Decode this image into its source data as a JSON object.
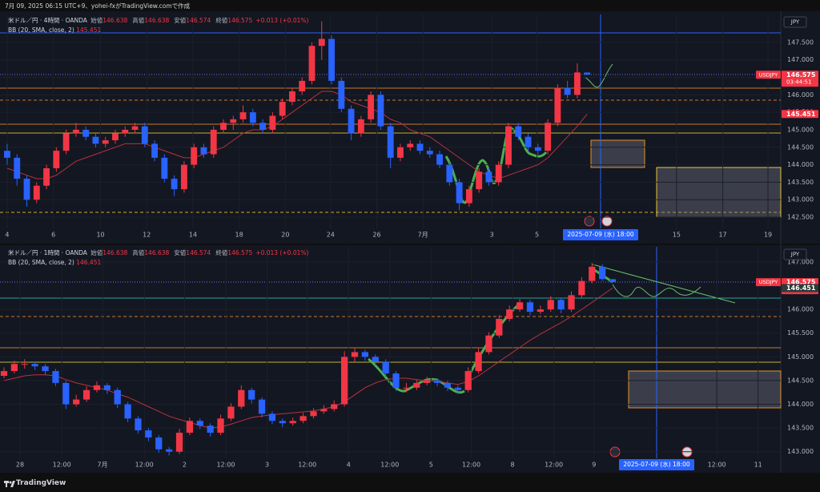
{
  "header": {
    "text": "7月 09, 2025 06:15 UTC+9、yohei-fxがTradingView.comで作成"
  },
  "footer": {
    "brand": "TradingView"
  },
  "chart_data": [
    {
      "type": "candlestick",
      "name": "米ドル／円 · 4時間 · OANDA",
      "fields": [
        {
          "label": "始値",
          "value": "146.638"
        },
        {
          "label": "高値",
          "value": "146.638"
        },
        {
          "label": "安値",
          "value": "146.574"
        },
        {
          "label": "終値",
          "value": "146.575"
        }
      ],
      "change": "+0.013 (+0.01%)",
      "bb_name": "BB (20, SMA, close, 2)",
      "bb_value": "145.451",
      "currency": "JPY",
      "tags": {
        "symbol": "USDJPY",
        "price": "146.575",
        "countdown": "03:44:51",
        "bb": "145.451"
      },
      "crosshair_label": "2025-07-09 (水)  18:00",
      "up_color": "#f23645",
      "down_color": "#2962ff",
      "bb_color": "#b8323c",
      "bb_tag_color": "#f23645",
      "ylim": [
        142.18,
        148.3
      ],
      "yticks": [
        {
          "value": 142.5,
          "label": "142.500"
        },
        {
          "value": 143,
          "label": "143.000"
        },
        {
          "value": 143.5,
          "label": "143.500"
        },
        {
          "value": 144,
          "label": "144.000"
        },
        {
          "value": 144.5,
          "label": "144.500"
        },
        {
          "value": 145,
          "label": "145.000"
        },
        {
          "value": 145.5,
          "label": "145.500"
        },
        {
          "value": 146,
          "label": "146.000"
        },
        {
          "value": 146.5,
          "label": "146.500"
        },
        {
          "value": 147,
          "label": "147.000"
        },
        {
          "value": 147.5,
          "label": "147.500"
        }
      ],
      "xlim": [
        -0.73,
        78.7
      ],
      "xticks": [
        {
          "value": 0,
          "label": "4"
        },
        {
          "value": 4.7,
          "label": "6"
        },
        {
          "value": 9.5,
          "label": "10"
        },
        {
          "value": 14.2,
          "label": "12"
        },
        {
          "value": 18.9,
          "label": "14"
        },
        {
          "value": 23.6,
          "label": "18"
        },
        {
          "value": 28.3,
          "label": "20"
        },
        {
          "value": 32.9,
          "label": "24"
        },
        {
          "value": 37.6,
          "label": "26"
        },
        {
          "value": 42.3,
          "label": "7月"
        },
        {
          "value": 49.3,
          "label": "3"
        },
        {
          "value": 53.9,
          "label": "5"
        },
        {
          "value": 68.1,
          "label": "15"
        },
        {
          "value": 72.8,
          "label": "17"
        },
        {
          "value": 77.4,
          "label": "19"
        }
      ],
      "candles": [
        [
          144.4,
          144.6,
          144.0,
          144.2
        ],
        [
          144.2,
          144.3,
          143.4,
          143.6
        ],
        [
          143.6,
          143.7,
          142.8,
          143.0
        ],
        [
          143.0,
          143.5,
          142.9,
          143.4
        ],
        [
          143.4,
          144.0,
          143.3,
          143.9
        ],
        [
          143.9,
          144.5,
          143.8,
          144.4
        ],
        [
          144.4,
          145.0,
          144.3,
          144.9
        ],
        [
          144.9,
          145.2,
          144.8,
          145.0
        ],
        [
          145.0,
          145.1,
          144.7,
          144.8
        ],
        [
          144.8,
          144.9,
          144.5,
          144.6
        ],
        [
          144.6,
          144.8,
          144.5,
          144.7
        ],
        [
          144.7,
          145.0,
          144.6,
          144.9
        ],
        [
          144.9,
          145.1,
          144.8,
          145.0
        ],
        [
          145.0,
          145.2,
          144.9,
          145.1
        ],
        [
          145.1,
          145.2,
          144.5,
          144.6
        ],
        [
          144.6,
          144.7,
          144.1,
          144.2
        ],
        [
          144.2,
          144.3,
          143.5,
          143.6
        ],
        [
          143.6,
          143.7,
          143.1,
          143.3
        ],
        [
          143.3,
          144.1,
          143.2,
          144.0
        ],
        [
          144.0,
          144.6,
          143.9,
          144.5
        ],
        [
          144.5,
          144.6,
          144.2,
          144.3
        ],
        [
          144.3,
          145.1,
          144.2,
          145.0
        ],
        [
          145.0,
          145.3,
          144.9,
          145.2
        ],
        [
          145.2,
          145.4,
          145.0,
          145.3
        ],
        [
          145.3,
          145.7,
          145.2,
          145.5
        ],
        [
          145.5,
          145.6,
          145.1,
          145.2
        ],
        [
          145.2,
          145.3,
          144.9,
          145.0
        ],
        [
          145.0,
          145.5,
          144.9,
          145.4
        ],
        [
          145.4,
          145.9,
          145.3,
          145.8
        ],
        [
          145.8,
          146.2,
          145.7,
          146.1
        ],
        [
          146.1,
          146.5,
          146.0,
          146.4
        ],
        [
          146.4,
          147.5,
          146.3,
          147.4
        ],
        [
          147.4,
          148.1,
          147.0,
          147.6
        ],
        [
          147.6,
          147.7,
          146.3,
          146.4
        ],
        [
          146.4,
          146.5,
          145.5,
          145.6
        ],
        [
          145.6,
          145.7,
          144.7,
          144.9
        ],
        [
          144.9,
          145.4,
          144.8,
          145.3
        ],
        [
          145.3,
          146.1,
          145.2,
          146.0
        ],
        [
          146.0,
          146.1,
          145.0,
          145.1
        ],
        [
          145.1,
          145.2,
          143.9,
          144.2
        ],
        [
          144.2,
          144.6,
          144.1,
          144.5
        ],
        [
          144.5,
          144.7,
          144.4,
          144.6
        ],
        [
          144.6,
          144.7,
          144.3,
          144.4
        ],
        [
          144.4,
          144.5,
          144.2,
          144.3
        ],
        [
          144.3,
          144.4,
          143.9,
          144.0
        ],
        [
          144.0,
          144.1,
          143.4,
          143.5
        ],
        [
          143.5,
          143.6,
          142.7,
          142.9
        ],
        [
          142.9,
          143.4,
          142.8,
          143.3
        ],
        [
          143.3,
          143.9,
          143.2,
          143.8
        ],
        [
          143.8,
          143.9,
          143.4,
          143.5
        ],
        [
          143.5,
          144.1,
          143.4,
          144.0
        ],
        [
          144.0,
          145.2,
          143.9,
          145.1
        ],
        [
          145.1,
          145.2,
          144.7,
          144.8
        ],
        [
          144.8,
          144.9,
          144.4,
          144.5
        ],
        [
          144.5,
          144.6,
          144.3,
          144.4
        ],
        [
          144.4,
          145.3,
          144.3,
          145.2
        ],
        [
          145.2,
          146.3,
          145.1,
          146.2
        ],
        [
          146.2,
          146.4,
          145.9,
          146.0
        ],
        [
          146.0,
          146.9,
          145.9,
          146.64
        ],
        [
          146.638,
          146.638,
          146.574,
          146.575
        ]
      ],
      "bb": [
        143.9,
        143.8,
        143.7,
        143.6,
        143.6,
        143.7,
        143.9,
        144.1,
        144.2,
        144.3,
        144.4,
        144.5,
        144.6,
        144.6,
        144.6,
        144.5,
        144.4,
        144.3,
        144.2,
        144.2,
        144.3,
        144.4,
        144.5,
        144.7,
        144.9,
        145.0,
        145.0,
        145.1,
        145.3,
        145.5,
        145.7,
        145.9,
        146.1,
        146.1,
        146.0,
        145.8,
        145.7,
        145.6,
        145.5,
        145.3,
        145.2,
        145.0,
        144.9,
        144.8,
        144.6,
        144.4,
        144.2,
        144.0,
        143.8,
        143.7,
        143.6,
        143.7,
        143.8,
        143.9,
        144.0,
        144.2,
        144.5,
        144.8,
        145.1,
        145.451
      ]
    },
    {
      "type": "candlestick",
      "name": "米ドル／円 · 1時間 · OANDA",
      "fields": [
        {
          "label": "始値",
          "value": "146.638"
        },
        {
          "label": "高値",
          "value": "146.638"
        },
        {
          "label": "安値",
          "value": "146.574"
        },
        {
          "label": "終値",
          "value": "146.575"
        }
      ],
      "change": "+0.013 (+0.01%)",
      "bb_name": "BB (20, SMA, close, 2)",
      "bb_value": "146.451",
      "currency": "JPY",
      "tags": {
        "symbol": "USDJPY",
        "price": "146.575",
        "countdown": "44:50",
        "bb": "146.451"
      },
      "crosshair_label": "2025-07-09 (水)  18:00",
      "up_color": "#f23645",
      "down_color": "#2962ff",
      "bb_color": "#b8323c",
      "bb_tag_color": "#2d3a3a",
      "ylim": [
        142.86,
        147.32
      ],
      "yticks": [
        {
          "value": 143,
          "label": "143.000"
        },
        {
          "value": 143.5,
          "label": "143.500"
        },
        {
          "value": 144,
          "label": "144.000"
        },
        {
          "value": 144.5,
          "label": "144.500"
        },
        {
          "value": 145,
          "label": "145.000"
        },
        {
          "value": 145.5,
          "label": "145.500"
        },
        {
          "value": 146,
          "label": "146.000"
        },
        {
          "value": 147,
          "label": "147.000"
        }
      ],
      "xlim": [
        -0.39,
        75.3
      ],
      "xticks": [
        {
          "value": 1.55,
          "label": "28"
        },
        {
          "value": 5.6,
          "label": "12:00"
        },
        {
          "value": 9.55,
          "label": "7月"
        },
        {
          "value": 13.6,
          "label": "12:00"
        },
        {
          "value": 17.5,
          "label": "2"
        },
        {
          "value": 21.5,
          "label": "12:00"
        },
        {
          "value": 25.5,
          "label": "3"
        },
        {
          "value": 29.4,
          "label": "12:00"
        },
        {
          "value": 33.4,
          "label": "4"
        },
        {
          "value": 37.4,
          "label": "12:00"
        },
        {
          "value": 41.4,
          "label": "5"
        },
        {
          "value": 45.3,
          "label": "12:00"
        },
        {
          "value": 49.3,
          "label": "8"
        },
        {
          "value": 53.3,
          "label": "12:00"
        },
        {
          "value": 57.2,
          "label": "9"
        },
        {
          "value": 69.1,
          "label": "12:00"
        },
        {
          "value": 73.1,
          "label": "11"
        }
      ],
      "candles": [
        [
          144.6,
          144.78,
          144.55,
          144.7
        ],
        [
          144.7,
          144.92,
          144.65,
          144.85
        ],
        [
          144.85,
          144.95,
          144.75,
          144.85
        ],
        [
          144.85,
          144.9,
          144.72,
          144.8
        ],
        [
          144.8,
          144.85,
          144.62,
          144.7
        ],
        [
          144.7,
          144.75,
          144.38,
          144.45
        ],
        [
          144.45,
          144.5,
          143.9,
          144.0
        ],
        [
          144.0,
          144.2,
          143.95,
          144.1
        ],
        [
          144.1,
          144.38,
          144.05,
          144.3
        ],
        [
          144.3,
          144.48,
          144.25,
          144.4
        ],
        [
          144.4,
          144.45,
          144.22,
          144.3
        ],
        [
          144.3,
          144.35,
          143.92,
          144.0
        ],
        [
          144.0,
          144.05,
          143.62,
          143.7
        ],
        [
          143.7,
          143.75,
          143.38,
          143.45
        ],
        [
          143.45,
          143.5,
          143.22,
          143.3
        ],
        [
          143.3,
          143.35,
          142.98,
          143.05
        ],
        [
          143.05,
          143.1,
          142.92,
          143.0
        ],
        [
          143.0,
          143.48,
          142.95,
          143.4
        ],
        [
          143.4,
          143.72,
          143.35,
          143.65
        ],
        [
          143.65,
          143.7,
          143.48,
          143.55
        ],
        [
          143.55,
          143.6,
          143.32,
          143.4
        ],
        [
          143.4,
          143.78,
          143.35,
          143.7
        ],
        [
          143.7,
          144.02,
          143.65,
          143.95
        ],
        [
          143.95,
          144.4,
          143.9,
          144.3
        ],
        [
          144.3,
          144.35,
          144.02,
          144.1
        ],
        [
          144.1,
          144.15,
          143.72,
          143.8
        ],
        [
          143.8,
          143.85,
          143.58,
          143.65
        ],
        [
          143.65,
          143.7,
          143.52,
          143.6
        ],
        [
          143.6,
          143.72,
          143.55,
          143.65
        ],
        [
          143.65,
          143.82,
          143.6,
          143.75
        ],
        [
          143.75,
          143.92,
          143.7,
          143.85
        ],
        [
          143.85,
          143.98,
          143.8,
          143.9
        ],
        [
          143.9,
          144.08,
          143.85,
          144.0
        ],
        [
          144.0,
          145.12,
          143.95,
          145.0
        ],
        [
          145.0,
          145.18,
          144.9,
          145.1
        ],
        [
          145.1,
          145.15,
          144.92,
          145.0
        ],
        [
          145.0,
          145.05,
          144.82,
          144.9
        ],
        [
          144.9,
          144.95,
          144.58,
          144.65
        ],
        [
          144.65,
          144.7,
          144.28,
          144.35
        ],
        [
          144.35,
          144.45,
          144.25,
          144.35
        ],
        [
          144.35,
          144.52,
          144.3,
          144.45
        ],
        [
          144.45,
          144.58,
          144.4,
          144.5
        ],
        [
          144.5,
          144.55,
          144.38,
          144.45
        ],
        [
          144.45,
          144.5,
          144.28,
          144.35
        ],
        [
          144.35,
          144.4,
          144.22,
          144.3
        ],
        [
          144.3,
          144.78,
          144.25,
          144.7
        ],
        [
          144.7,
          145.18,
          144.65,
          145.1
        ],
        [
          145.1,
          145.52,
          145.05,
          145.45
        ],
        [
          145.45,
          145.88,
          145.4,
          145.8
        ],
        [
          145.8,
          146.08,
          145.75,
          146.0
        ],
        [
          146.0,
          146.22,
          145.95,
          146.15
        ],
        [
          146.15,
          146.2,
          145.88,
          145.95
        ],
        [
          145.95,
          146.08,
          145.9,
          146.0
        ],
        [
          146.0,
          146.28,
          145.95,
          146.2
        ],
        [
          146.2,
          146.25,
          145.92,
          146.0
        ],
        [
          146.0,
          146.38,
          145.95,
          146.3
        ],
        [
          146.3,
          146.68,
          146.25,
          146.6
        ],
        [
          146.6,
          146.98,
          146.55,
          146.9
        ],
        [
          146.9,
          146.95,
          146.6,
          146.64
        ],
        [
          146.638,
          146.638,
          146.574,
          146.575
        ]
      ],
      "bb": [
        144.5,
        144.55,
        144.6,
        144.62,
        144.62,
        144.6,
        144.52,
        144.45,
        144.4,
        144.35,
        144.3,
        144.22,
        144.15,
        144.05,
        143.95,
        143.85,
        143.75,
        143.68,
        143.62,
        143.55,
        143.5,
        143.52,
        143.58,
        143.65,
        143.72,
        143.75,
        143.78,
        143.8,
        143.82,
        143.84,
        143.86,
        143.9,
        143.95,
        144.05,
        144.2,
        144.35,
        144.45,
        144.52,
        144.55,
        144.55,
        144.52,
        144.5,
        144.48,
        144.45,
        144.42,
        144.48,
        144.6,
        144.75,
        144.9,
        145.05,
        145.2,
        145.35,
        145.48,
        145.6,
        145.72,
        145.85,
        146.0,
        146.15,
        146.3,
        146.451
      ]
    }
  ]
}
